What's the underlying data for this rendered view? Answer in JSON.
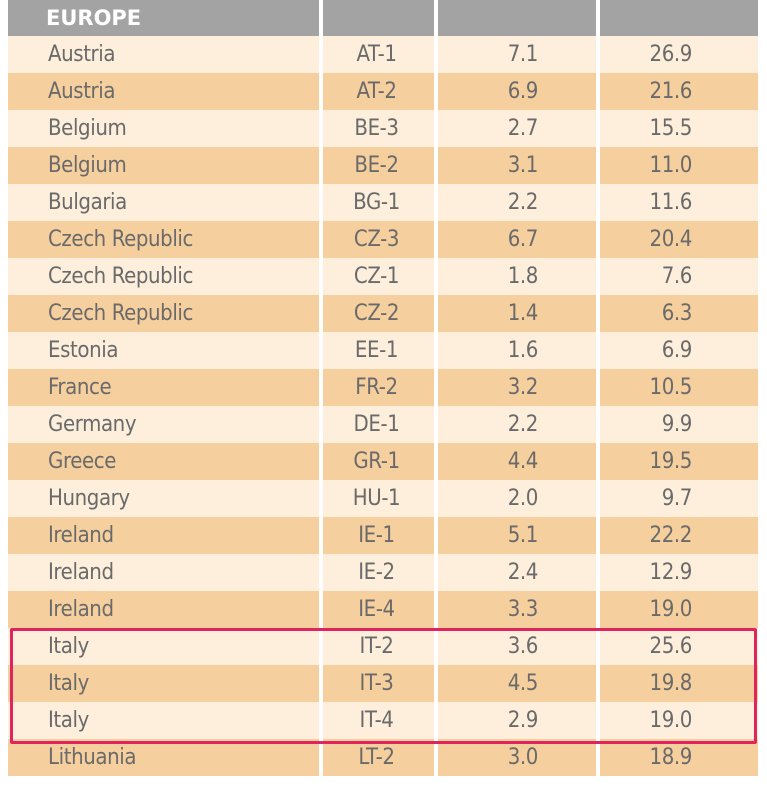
{
  "table": {
    "region": "EUROPE",
    "rows": [
      {
        "country": "Austria",
        "code": "AT-1",
        "value1": "7.1",
        "value2": "26.9"
      },
      {
        "country": "Austria",
        "code": "AT-2",
        "value1": "6.9",
        "value2": "21.6"
      },
      {
        "country": "Belgium",
        "code": "BE-3",
        "value1": "2.7",
        "value2": "15.5"
      },
      {
        "country": "Belgium",
        "code": "BE-2",
        "value1": "3.1",
        "value2": "11.0"
      },
      {
        "country": "Bulgaria",
        "code": "BG-1",
        "value1": "2.2",
        "value2": "11.6"
      },
      {
        "country": "Czech Republic",
        "code": "CZ-3",
        "value1": "6.7",
        "value2": "20.4"
      },
      {
        "country": "Czech Republic",
        "code": "CZ-1",
        "value1": "1.8",
        "value2": "7.6"
      },
      {
        "country": "Czech Republic",
        "code": "CZ-2",
        "value1": "1.4",
        "value2": "6.3"
      },
      {
        "country": "Estonia",
        "code": "EE-1",
        "value1": "1.6",
        "value2": "6.9"
      },
      {
        "country": "France",
        "code": "FR-2",
        "value1": "3.2",
        "value2": "10.5"
      },
      {
        "country": "Germany",
        "code": "DE-1",
        "value1": "2.2",
        "value2": "9.9"
      },
      {
        "country": "Greece",
        "code": "GR-1",
        "value1": "4.4",
        "value2": "19.5"
      },
      {
        "country": "Hungary",
        "code": "HU-1",
        "value1": "2.0",
        "value2": "9.7"
      },
      {
        "country": "Ireland",
        "code": "IE-1",
        "value1": "5.1",
        "value2": "22.2"
      },
      {
        "country": "Ireland",
        "code": "IE-2",
        "value1": "2.4",
        "value2": "12.9"
      },
      {
        "country": "Ireland",
        "code": "IE-4",
        "value1": "3.3",
        "value2": "19.0"
      },
      {
        "country": "Italy",
        "code": "IT-2",
        "value1": "3.6",
        "value2": "25.6"
      },
      {
        "country": "Italy",
        "code": "IT-3",
        "value1": "4.5",
        "value2": "19.8"
      },
      {
        "country": "Italy",
        "code": "IT-4",
        "value1": "2.9",
        "value2": "19.0"
      },
      {
        "country": "Lithuania",
        "code": "LT-2",
        "value1": "3.0",
        "value2": "18.9"
      }
    ]
  },
  "highlight": {
    "rows": [
      "IT-2",
      "IT-3",
      "IT-4"
    ],
    "color": "#e0245e"
  },
  "colors": {
    "header_bg": "#a3a3a3",
    "row_light": "#fdefdc",
    "row_dark": "#f6cf9e",
    "text": "#6a6a6a"
  }
}
